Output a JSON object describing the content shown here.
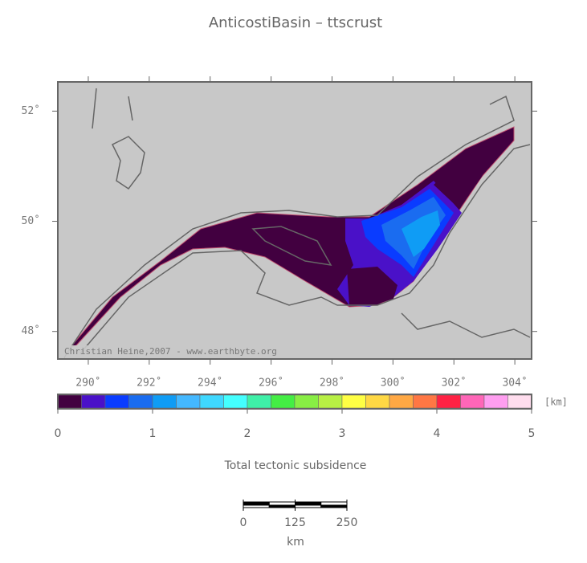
{
  "title": "AnticostiBasin – ttscrust",
  "map": {
    "lonlim": [
      289.0,
      304.55
    ],
    "latlim": [
      47.5,
      52.53
    ],
    "lon_ticks": [
      {
        "value": 290,
        "label": "290˚"
      },
      {
        "value": 292,
        "label": "292˚"
      },
      {
        "value": 294,
        "label": "294˚"
      },
      {
        "value": 296,
        "label": "296˚"
      },
      {
        "value": 298,
        "label": "298˚"
      },
      {
        "value": 300,
        "label": "300˚"
      },
      {
        "value": 302,
        "label": "302˚"
      },
      {
        "value": 304,
        "label": "304˚"
      }
    ],
    "lat_ticks": [
      {
        "value": 48,
        "label": "48˚"
      },
      {
        "value": 50,
        "label": "50˚"
      },
      {
        "value": 52,
        "label": "52˚"
      }
    ],
    "credit": "Christian Heine,2007 - www.earthbyte.org"
  },
  "colorbar": {
    "lim": [
      0,
      5
    ],
    "ticks": [
      0,
      1,
      2,
      3,
      4,
      5
    ],
    "unit": "[km]",
    "label": "Total tectonic subsidence",
    "colors": [
      "#420040",
      "#4a11c8",
      "#0a3cff",
      "#1a6cf0",
      "#0f9cf5",
      "#44b8ff",
      "#3fd8ff",
      "#44ffff",
      "#3ff0a8",
      "#44ee44",
      "#88ee44",
      "#b8f044",
      "#ffff44",
      "#ffd844",
      "#ffa844",
      "#ff7744",
      "#ff2244",
      "#ff66b8",
      "#ff9ef0",
      "#ffddee"
    ]
  },
  "scalebar": {
    "lim": [
      0,
      250
    ],
    "ticks": [
      0,
      125,
      250
    ],
    "unit": "km"
  }
}
